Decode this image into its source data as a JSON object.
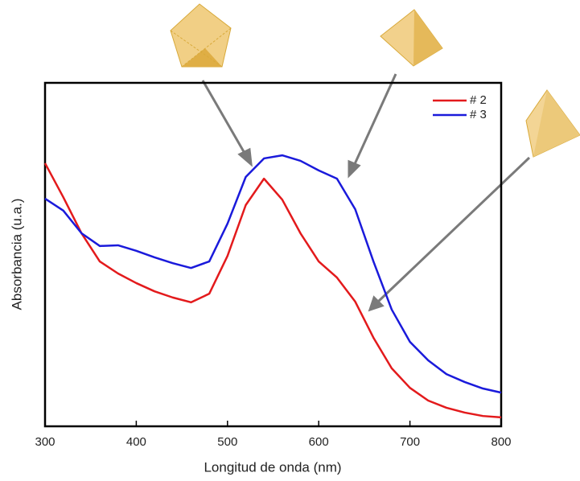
{
  "chart_data": {
    "type": "line",
    "x_label": "Longitud de onda (nm)",
    "y_label": "Absorbancia (u.a.)",
    "x": [
      300,
      320,
      340,
      360,
      380,
      400,
      420,
      440,
      460,
      480,
      500,
      520,
      540,
      560,
      580,
      600,
      620,
      640,
      660,
      680,
      700,
      720,
      740,
      760,
      780,
      800
    ],
    "series": [
      {
        "name": "# 2",
        "color": "#e31a1c",
        "values": [
          0.766,
          0.667,
          0.562,
          0.48,
          0.445,
          0.417,
          0.393,
          0.375,
          0.361,
          0.386,
          0.496,
          0.644,
          0.721,
          0.66,
          0.562,
          0.48,
          0.433,
          0.363,
          0.258,
          0.169,
          0.112,
          0.075,
          0.054,
          0.04,
          0.03,
          0.026
        ]
      },
      {
        "name": "# 3",
        "color": "#1a1adb",
        "values": [
          0.663,
          0.628,
          0.562,
          0.525,
          0.527,
          0.511,
          0.492,
          0.475,
          0.461,
          0.48,
          0.59,
          0.726,
          0.78,
          0.789,
          0.773,
          0.745,
          0.721,
          0.632,
          0.48,
          0.34,
          0.246,
          0.192,
          0.152,
          0.129,
          0.11,
          0.098
        ]
      }
    ],
    "xlim": [
      300,
      800
    ],
    "xticks": [
      300,
      400,
      500,
      600,
      700,
      800
    ],
    "ylim": [
      0,
      1
    ],
    "legend": "upper right"
  }
}
